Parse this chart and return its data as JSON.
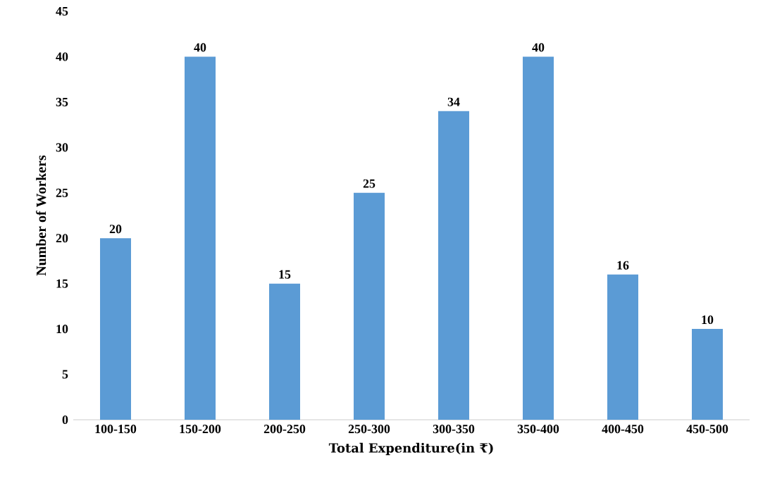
{
  "chart_data": {
    "type": "bar",
    "xlabel": "Total Expenditure(in ₹)",
    "ylabel": "Number of Workers",
    "categories": [
      "100-150",
      "150-200",
      "200-250",
      "250-300",
      "300-350",
      "350-400",
      "400-450",
      "450-500"
    ],
    "values": [
      20,
      40,
      15,
      25,
      34,
      40,
      16,
      10
    ],
    "color": "#5b9bd5",
    "data_labels": true,
    "ylim": [
      0,
      45
    ],
    "yticks": [
      0,
      5,
      10,
      15,
      20,
      25,
      30,
      35,
      40,
      45
    ],
    "grid": false
  }
}
